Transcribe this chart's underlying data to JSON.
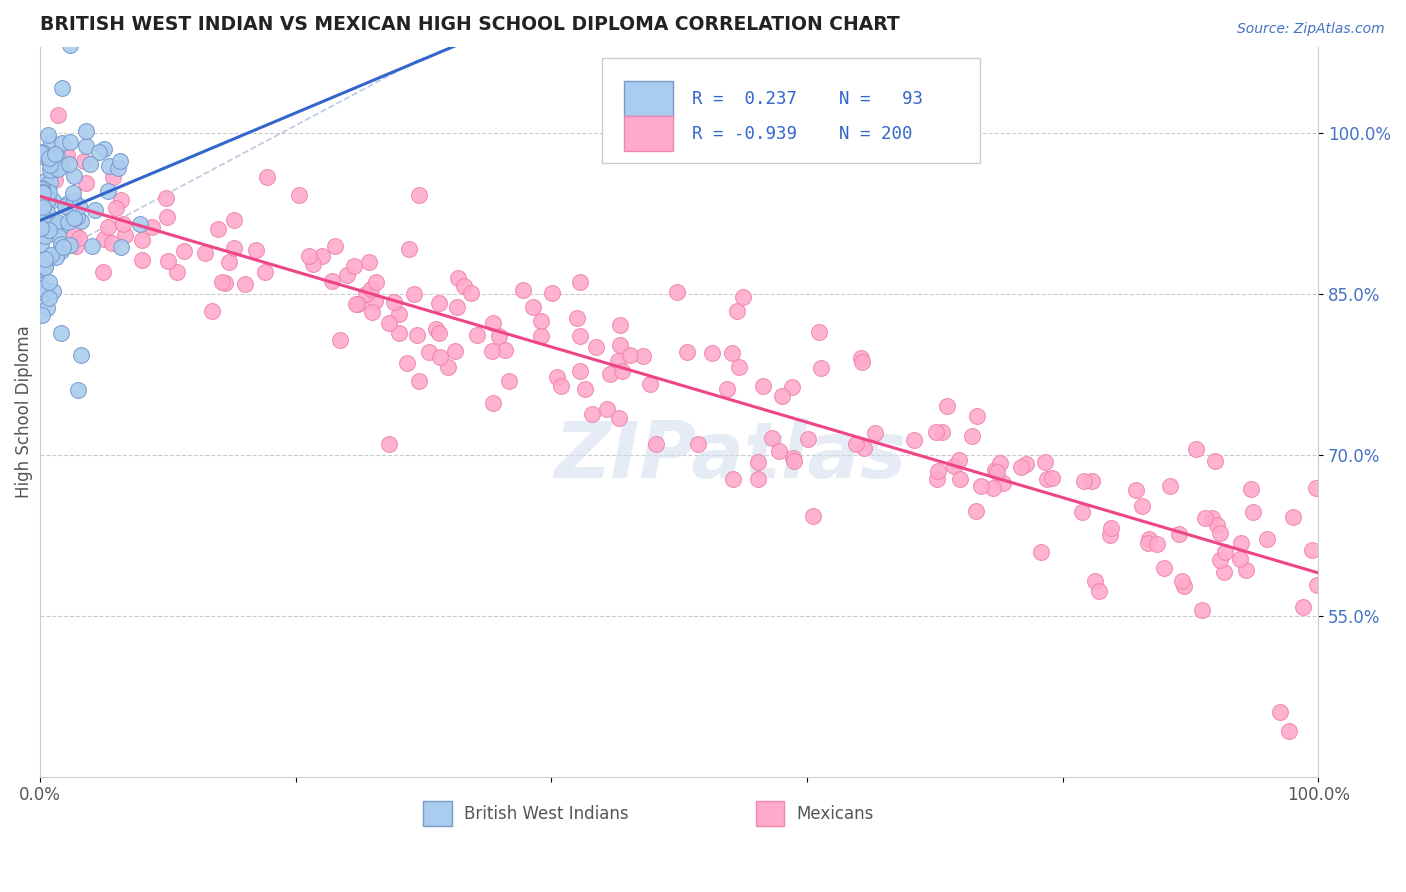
{
  "title": "BRITISH WEST INDIAN VS MEXICAN HIGH SCHOOL DIPLOMA CORRELATION CHART",
  "source": "Source: ZipAtlas.com",
  "ylabel": "High School Diploma",
  "xlim": [
    0,
    1
  ],
  "ylim": [
    0.4,
    1.08
  ],
  "right_yticks": [
    0.55,
    0.7,
    0.85,
    1.0
  ],
  "right_yticklabels": [
    "55.0%",
    "70.0%",
    "85.0%",
    "100.0%"
  ],
  "xtick_positions": [
    0.0,
    0.2,
    0.4,
    0.6,
    0.8,
    1.0
  ],
  "xtick_labels": [
    "0.0%",
    "",
    "",
    "",
    "",
    "100.0%"
  ],
  "blue_line_color": "#3366cc",
  "pink_line_color": "#ee4488",
  "blue_scatter_color": "#aaccee",
  "pink_scatter_color": "#ffaacc",
  "blue_edge_color": "#7799cc",
  "pink_edge_color": "#ee88aa",
  "watermark": "ZIPatlas",
  "legend_label1": "British West Indians",
  "legend_label2": "Mexicans",
  "bg_color": "#ffffff",
  "grid_color": "#cccccc",
  "refline_color": "#aabbdd",
  "title_color": "#222222",
  "right_tick_color": "#4472c4",
  "source_color": "#4472c4"
}
